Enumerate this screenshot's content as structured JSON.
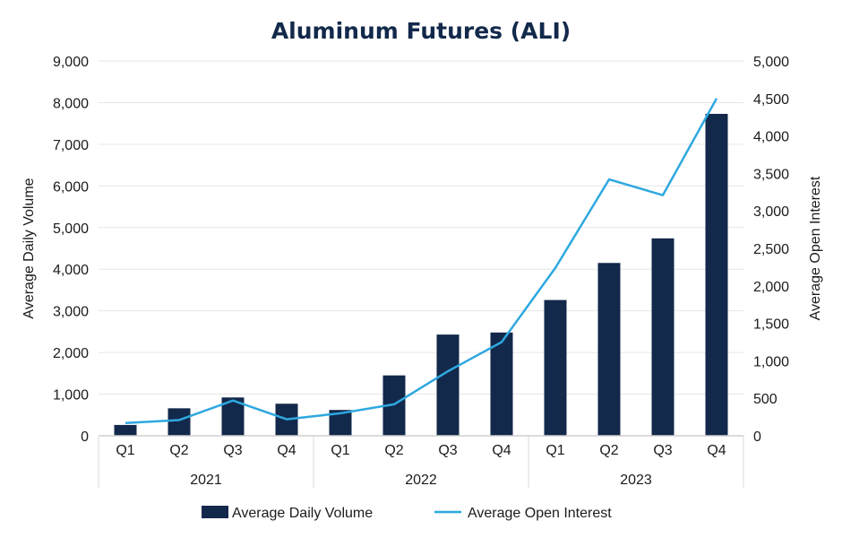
{
  "chart_data": {
    "type": "bar",
    "title": "Aluminum Futures (ALI)",
    "categories": [
      "Q1",
      "Q2",
      "Q3",
      "Q4",
      "Q1",
      "Q2",
      "Q3",
      "Q4",
      "Q1",
      "Q2",
      "Q3",
      "Q4"
    ],
    "groups": [
      {
        "label": "2021",
        "count": 4
      },
      {
        "label": "2022",
        "count": 4
      },
      {
        "label": "2023",
        "count": 4
      }
    ],
    "ylabel_left": "Average Daily Volume",
    "ylabel_right": "Average Open Interest",
    "ylim_left": [
      0,
      9000
    ],
    "ylim_right": [
      0,
      5000
    ],
    "yticks_left": [
      "0",
      "1,000",
      "2,000",
      "3,000",
      "4,000",
      "5,000",
      "6,000",
      "7,000",
      "8,000",
      "9,000"
    ],
    "yticks_right": [
      "0",
      "500",
      "1,000",
      "1,500",
      "2,000",
      "2,500",
      "3,000",
      "3,500",
      "4,000",
      "4,500",
      "5,000"
    ],
    "grid": true,
    "legend_position": "bottom",
    "series": [
      {
        "name": "Average Daily Volume",
        "type": "bar",
        "axis": "left",
        "color": "#13294b",
        "values": [
          260,
          660,
          920,
          770,
          620,
          1450,
          2430,
          2480,
          3260,
          4150,
          4740,
          7730
        ]
      },
      {
        "name": "Average Open Interest",
        "type": "line",
        "axis": "right",
        "color": "#2ea8e0",
        "values": [
          170,
          210,
          470,
          220,
          300,
          420,
          860,
          1250,
          2240,
          3420,
          3210,
          4500
        ]
      }
    ]
  }
}
